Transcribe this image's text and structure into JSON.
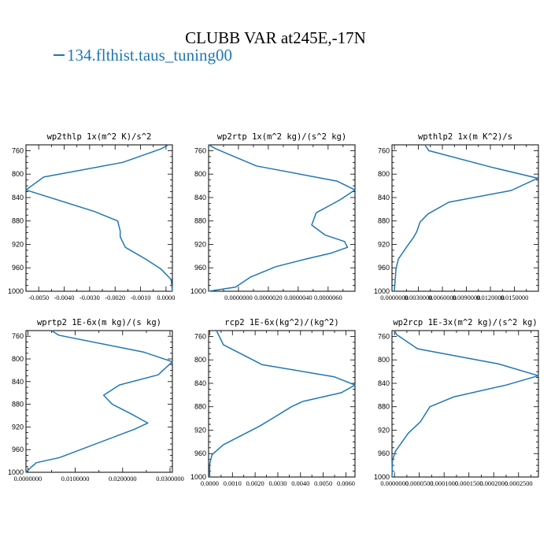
{
  "title": "CLUBB VAR at245E,-17N",
  "legend": "134.flthist.taus_tuning00",
  "colors": {
    "series": "#1f77b4",
    "axes": "#000000"
  },
  "chart_data": [
    {
      "type": "line",
      "title": "wp2thlp  1x(m^2 K)/s^2",
      "xlim": [
        -0.0055,
        0.00025
      ],
      "ylim": [
        1000,
        750
      ],
      "ydir": "inverted",
      "xticks": [
        -0.005,
        -0.004,
        -0.003,
        -0.002,
        -0.001,
        0.0
      ],
      "xticklabels": [
        "-0.0050",
        "-0.0040",
        "-0.0030",
        "-0.0020",
        "-0.0010",
        "0.0000"
      ],
      "yticks": [
        760,
        800,
        840,
        880,
        920,
        960,
        1000
      ],
      "yticklabels": [
        "760",
        "800",
        "840",
        "880",
        "920",
        "960",
        "1000"
      ],
      "series": [
        {
          "x": [
            0.0001,
            -0.0002,
            -0.0017,
            -0.0048,
            -0.0055,
            -0.0028,
            -0.0019,
            -0.0018,
            -0.0018,
            -0.0016,
            -0.0008,
            -0.0002,
            0.0002,
            0.00025
          ],
          "y": [
            750,
            757,
            780,
            805,
            827,
            864,
            880,
            897,
            907,
            925,
            945,
            962,
            980,
            1000
          ]
        }
      ]
    },
    {
      "type": "line",
      "title": "wp2rtp  1x(m^2 kg)/(s^2 kg)",
      "xlim": [
        -2e-06,
        7.8e-06
      ],
      "ylim": [
        1000,
        750
      ],
      "ydir": "inverted",
      "xticks": [
        0.0,
        2e-06,
        4e-06,
        6e-06
      ],
      "xticklabels": [
        "0.0000000",
        "0.0000020",
        "0.0000040",
        "0.0000060"
      ],
      "yticks": [
        760,
        800,
        840,
        880,
        920,
        960,
        1000
      ],
      "yticklabels": [
        "760",
        "800",
        "840",
        "880",
        "920",
        "960",
        "1000"
      ],
      "series": [
        {
          "x": [
            -2e-06,
            -1.5e-06,
            1.2e-06,
            6.6e-06,
            7.8e-06,
            6.8e-06,
            5.2e-06,
            4.9e-06,
            5.8e-06,
            7.1e-06,
            7.3e-06,
            6.2e-06,
            4.5e-06,
            2.5e-06,
            8e-07,
            -2e-07,
            -2e-06
          ],
          "y": [
            750,
            757,
            786,
            812,
            827,
            844,
            866,
            887,
            904,
            915,
            925,
            935,
            945,
            958,
            976,
            993,
            1000
          ]
        }
      ]
    },
    {
      "type": "line",
      "title": "wpthlp2  1x(m K^2)/s",
      "xlim": [
        -0.0003,
        0.018
      ],
      "ylim": [
        1000,
        750
      ],
      "ydir": "inverted",
      "xticks": [
        0.0,
        0.003,
        0.006,
        0.009,
        0.012,
        0.015
      ],
      "xticklabels": [
        "0.0000000",
        "0.0030000",
        "0.0060000",
        "0.0090000",
        "0.0120000",
        "0.0150000"
      ],
      "yticks": [
        760,
        800,
        840,
        880,
        920,
        960,
        1000
      ],
      "yticklabels": [
        "760",
        "800",
        "840",
        "880",
        "920",
        "960",
        "1000"
      ],
      "series": [
        {
          "x": [
            0.0038,
            0.0043,
            0.0121,
            0.0179,
            0.0146,
            0.0068,
            0.0042,
            0.0032,
            0.0028,
            0.0024,
            0.0015,
            0.0005,
            0.0002,
            0.0
          ],
          "y": [
            750,
            760,
            788,
            807,
            828,
            848,
            868,
            882,
            898,
            908,
            925,
            945,
            962,
            1000
          ]
        }
      ]
    },
    {
      "type": "line",
      "title": "wprtp2  1E-6x(m kg)/(s kg)",
      "xlim": [
        -0.0004,
        0.0305
      ],
      "ylim": [
        1000,
        750
      ],
      "ydir": "inverted",
      "xticks": [
        0.0,
        0.01,
        0.02,
        0.03
      ],
      "xticklabels": [
        "0.0000000",
        "0.0100000",
        "0.0200000",
        "0.0300000"
      ],
      "yticks": [
        760,
        800,
        840,
        880,
        920,
        960,
        1000
      ],
      "yticklabels": [
        "760",
        "800",
        "840",
        "880",
        "920",
        "960",
        "1000"
      ],
      "series": [
        {
          "x": [
            0.005,
            0.0065,
            0.0245,
            0.0305,
            0.0275,
            0.0193,
            0.016,
            0.0178,
            0.0218,
            0.0253,
            0.0225,
            0.0067,
            0.0018,
            0.0007,
            0.0001,
            -0.0003,
            -0.0004
          ],
          "y": [
            750,
            758,
            788,
            805,
            828,
            846,
            864,
            880,
            897,
            913,
            924,
            974,
            983,
            991,
            996,
            999,
            1000
          ]
        }
      ]
    },
    {
      "type": "line",
      "title": "rcp2  1E-6x(kg^2)/(kg^2)",
      "xlim": [
        -5e-05,
        0.0064
      ],
      "ylim": [
        1000,
        750
      ],
      "ydir": "inverted",
      "xticks": [
        0.0,
        0.001,
        0.002,
        0.003,
        0.004,
        0.005,
        0.006
      ],
      "xticklabels": [
        "0.0000",
        "0.0010",
        "0.0020",
        "0.0030",
        "0.0040",
        "0.0050",
        "0.0060"
      ],
      "yticks": [
        760,
        800,
        840,
        880,
        920,
        960,
        1000
      ],
      "yticklabels": [
        "760",
        "800",
        "840",
        "880",
        "920",
        "960",
        "1000"
      ],
      "series": [
        {
          "x": [
            0.0003,
            0.0006,
            0.0023,
            0.0055,
            0.0064,
            0.0058,
            0.0041,
            0.0036,
            0.0028,
            0.0022,
            0.0015,
            0.0006,
            0.0001,
            0.0,
            0.0
          ],
          "y": [
            750,
            774,
            808,
            829,
            843,
            856,
            871,
            880,
            899,
            913,
            927,
            945,
            962,
            978,
            1000
          ]
        }
      ]
    },
    {
      "type": "line",
      "title": "wp2rcp  1E-3x(m^2 kg)/(s^2 kg)",
      "xlim": [
        -5e-06,
        0.00029
      ],
      "ylim": [
        1000,
        750
      ],
      "ydir": "inverted",
      "xticks": [
        0.0,
        5e-05,
        0.0001,
        0.00015,
        0.0002,
        0.00025
      ],
      "xticklabels": [
        "0.0000000",
        "0.0000500",
        "0.0001000",
        "0.0001500",
        "0.0002000",
        "0.0002500"
      ],
      "yticks": [
        760,
        800,
        840,
        880,
        920,
        960,
        1000
      ],
      "yticklabels": [
        "760",
        "800",
        "840",
        "880",
        "920",
        "960",
        "1000"
      ],
      "series": [
        {
          "x": [
            0.0,
            4.5e-06,
            4.65e-05,
            0.00021,
            0.00029,
            0.000225,
            0.00012,
            7.15e-05,
            5.2e-05,
            2.8e-05,
            2e-06,
            -4e-06,
            -5e-06
          ],
          "y": [
            750,
            757,
            781,
            807,
            827,
            843,
            863,
            880,
            906,
            925,
            956,
            972,
            1000
          ]
        }
      ]
    }
  ]
}
